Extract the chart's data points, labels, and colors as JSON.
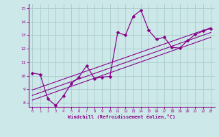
{
  "background_color": "#cce8e8",
  "grid_color": "#aacccc",
  "line_color": "#880088",
  "spine_color": "#880088",
  "tick_color": "#880088",
  "label_color": "#880088",
  "xlim": [
    -0.5,
    23.5
  ],
  "ylim": [
    7.7,
    15.3
  ],
  "xticks": [
    0,
    1,
    2,
    3,
    4,
    5,
    6,
    7,
    8,
    9,
    10,
    11,
    12,
    13,
    14,
    15,
    16,
    17,
    18,
    19,
    20,
    21,
    22,
    23
  ],
  "yticks": [
    8,
    9,
    10,
    11,
    12,
    13,
    14,
    15
  ],
  "xlabel": "Windchill (Refroidissement éolien,°C)",
  "main_x": [
    0,
    1,
    2,
    3,
    4,
    5,
    6,
    7,
    8,
    9,
    10,
    11,
    12,
    13,
    14,
    15,
    16,
    17,
    18,
    19,
    20,
    21,
    22,
    23
  ],
  "main_y": [
    10.2,
    10.1,
    8.3,
    7.8,
    8.5,
    9.4,
    9.9,
    10.75,
    9.8,
    9.9,
    9.95,
    13.2,
    13.0,
    14.4,
    14.85,
    13.35,
    12.7,
    12.85,
    12.1,
    12.05,
    12.6,
    13.05,
    13.3,
    13.5
  ],
  "reg_lines": [
    {
      "x0": 0,
      "x1": 23,
      "y0": 8.2,
      "y1": 12.85
    },
    {
      "x0": 0,
      "x1": 23,
      "y0": 8.55,
      "y1": 13.2
    },
    {
      "x0": 0,
      "x1": 23,
      "y0": 8.95,
      "y1": 13.55
    }
  ],
  "markersize": 2.5,
  "linewidth": 0.9,
  "reg_linewidth": 0.8
}
